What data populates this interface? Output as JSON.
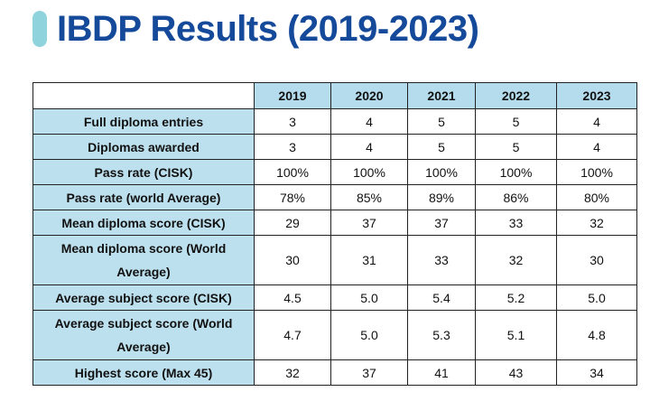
{
  "title": "IBDP Results (2019-2023)",
  "colors": {
    "title": "#15499a",
    "accent_bar": "#8fd3dc",
    "header_fill": "#b5dced",
    "label_fill": "#bde0ee"
  },
  "table": {
    "years": [
      "2019",
      "2020",
      "2021",
      "2022",
      "2023"
    ],
    "rows": [
      {
        "label": "Full diploma entries",
        "values": [
          "3",
          "4",
          "5",
          "5",
          "4"
        ]
      },
      {
        "label": "Diplomas awarded",
        "values": [
          "3",
          "4",
          "5",
          "5",
          "4"
        ]
      },
      {
        "label": "Pass rate (CISK)",
        "values": [
          "100%",
          "100%",
          "100%",
          "100%",
          "100%"
        ]
      },
      {
        "label": "Pass rate (world Average)",
        "values": [
          "78%",
          "85%",
          "89%",
          "86%",
          "80%"
        ]
      },
      {
        "label": "Mean diploma score (CISK)",
        "values": [
          "29",
          "37",
          "37",
          "33",
          "32"
        ]
      },
      {
        "label": "Mean diploma score (World Average)",
        "values": [
          "30",
          "31",
          "33",
          "32",
          "30"
        ]
      },
      {
        "label": "Average subject score (CISK)",
        "values": [
          "4.5",
          "5.0",
          "5.4",
          "5.2",
          "5.0"
        ]
      },
      {
        "label": "Average subject score (World Average)",
        "values": [
          "4.7",
          "5.0",
          "5.3",
          "5.1",
          "4.8"
        ]
      },
      {
        "label": "Highest score (Max 45)",
        "values": [
          "32",
          "37",
          "41",
          "43",
          "34"
        ]
      }
    ]
  }
}
